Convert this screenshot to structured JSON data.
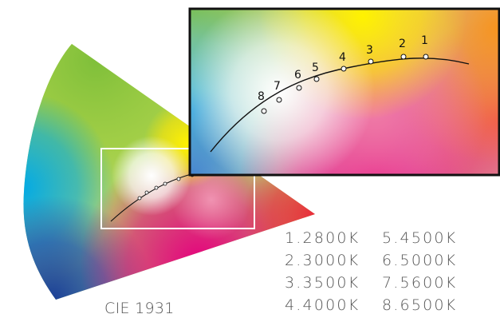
{
  "caption": "CIE 1931",
  "colors": {
    "green": "#8dc63f",
    "cyan": "#00a7e1",
    "blue": "#1a4fa0",
    "magenta": "#e5007e",
    "red": "#e9283c",
    "yellow": "#fff200",
    "white_point": "#ffffff"
  },
  "points": [
    {
      "id": "1",
      "label": "1"
    },
    {
      "id": "2",
      "label": "2"
    },
    {
      "id": "3",
      "label": "3"
    },
    {
      "id": "4",
      "label": "4"
    },
    {
      "id": "5",
      "label": "5"
    },
    {
      "id": "6",
      "label": "6"
    },
    {
      "id": "7",
      "label": "7"
    },
    {
      "id": "8",
      "label": "8"
    }
  ],
  "legend": [
    "1.2800K",
    "5.4500K",
    "2.3000K",
    "6.5000K",
    "3.3500K",
    "7.5600K",
    "4.4000K",
    "8.6500K"
  ]
}
